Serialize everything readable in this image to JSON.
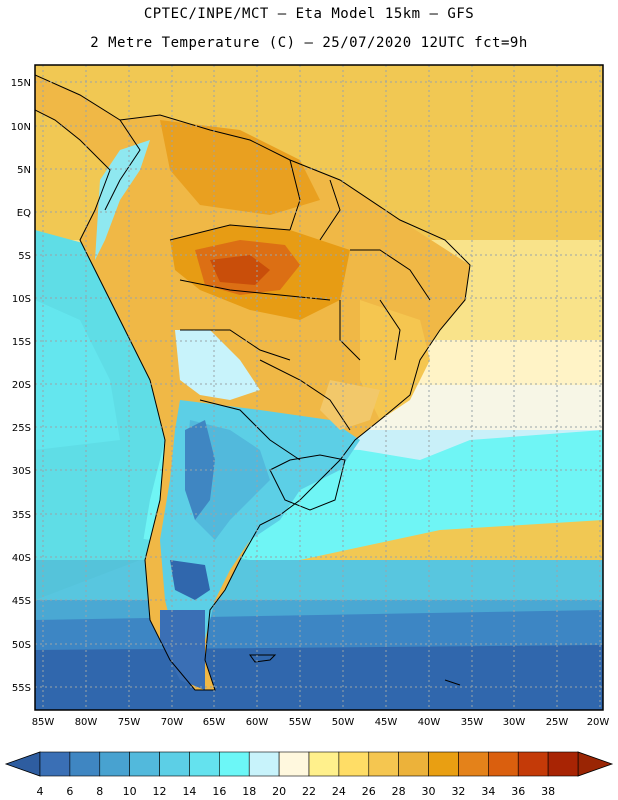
{
  "title_line1": "CPTEC/INPE/MCT –  Eta Model 15km – GFS",
  "title_line2": "2 Metre Temperature (C) – 25/07/2020 12UTC fct=9h",
  "lat_labels": [
    "15N",
    "10N",
    "5N",
    "EQ",
    "5S",
    "10S",
    "15S",
    "20S",
    "25S",
    "30S",
    "35S",
    "40S",
    "45S",
    "50S",
    "55S"
  ],
  "lon_labels": [
    "85W",
    "80W",
    "75W",
    "70W",
    "65W",
    "60W",
    "55W",
    "50W",
    "45W",
    "40W",
    "35W",
    "30W",
    "25W",
    "20W"
  ],
  "colorbar": {
    "ticks": [
      "4",
      "6",
      "8",
      "10",
      "12",
      "14",
      "16",
      "18",
      "20",
      "22",
      "24",
      "26",
      "28",
      "30",
      "32",
      "34",
      "36",
      "38"
    ],
    "colors": [
      "#3a6fb5",
      "#3f86c2",
      "#48a2d0",
      "#52b9dc",
      "#5ccfe6",
      "#64e2ee",
      "#6cf7f7",
      "#c8f3fb",
      "#fff8de",
      "#fff08c",
      "#ffdd66",
      "#f5c650",
      "#ecb23a",
      "#e99f12",
      "#e4821a",
      "#da5f0e",
      "#c43a08",
      "#a82404"
    ],
    "under_color": "#2e5da0",
    "over_color": "#9a2504"
  }
}
